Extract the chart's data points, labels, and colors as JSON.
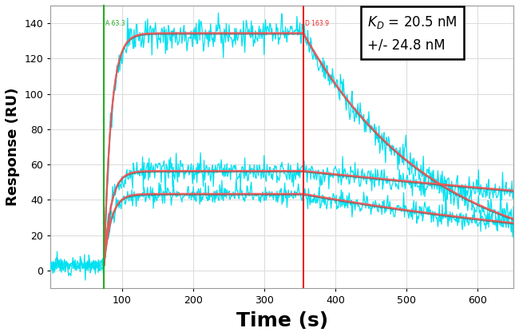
{
  "title": "",
  "xlabel": "Time (s)",
  "ylabel": "Response (RU)",
  "xlabel_fontsize": 18,
  "ylabel_fontsize": 13,
  "xlim": [
    0,
    650
  ],
  "ylim": [
    -10,
    150
  ],
  "yticks": [
    0,
    20,
    40,
    60,
    80,
    100,
    120,
    140
  ],
  "xticks": [
    100,
    200,
    300,
    400,
    500,
    600
  ],
  "bg_color": "#ffffff",
  "plot_bg_color": "#ffffff",
  "green_vline_x": 75,
  "red_vline_x": 355,
  "green_vline_label": "A 63.3",
  "red_vline_label": "D 163.9",
  "kd_text_line1": "$\\mathit{K}$$_D$ = 20.5 nM",
  "kd_text_line2": "+/- 24.8 nM",
  "assoc_start": 75,
  "dissoc_start": 355,
  "time_end": 650,
  "curves": [
    {
      "plateau": 134,
      "assoc_rate": 0.1,
      "dissoc_rate": 0.0055,
      "noise": 4.5,
      "baseline": 3
    },
    {
      "plateau": 56,
      "assoc_rate": 0.1,
      "dissoc_rate": 0.0008,
      "noise": 3.5,
      "baseline": 3
    },
    {
      "plateau": 43,
      "assoc_rate": 0.1,
      "dissoc_rate": 0.0018,
      "noise": 3.0,
      "baseline": 3
    }
  ],
  "data_color": "#00e0f0",
  "fit_color": "#ff5555",
  "fit_color2": "#666666",
  "grid_color": "#dddddd",
  "grid_alpha": 1.0,
  "tick_label_fontsize": 9,
  "kd_fontsize": 12
}
